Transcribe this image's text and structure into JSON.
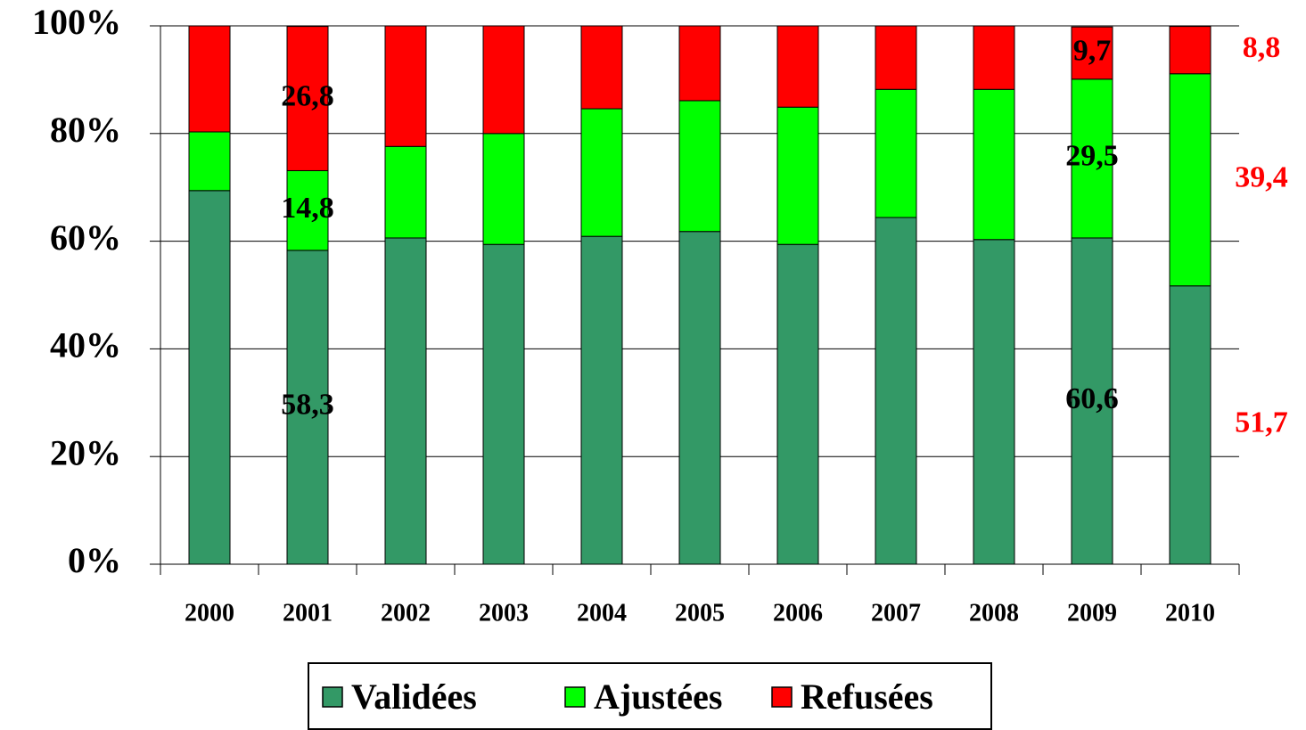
{
  "chart_data": {
    "type": "stacked_bar",
    "categories": [
      "2000",
      "2001",
      "2002",
      "2003",
      "2004",
      "2005",
      "2006",
      "2007",
      "2008",
      "2009",
      "2010"
    ],
    "series": [
      {
        "name": "Validées",
        "color": "#339966",
        "values": [
          69.4,
          58.3,
          60.6,
          59.4,
          60.9,
          61.8,
          59.4,
          64.4,
          60.3,
          60.6,
          51.7
        ],
        "value_labels": [
          null,
          "58,3",
          null,
          null,
          null,
          null,
          null,
          null,
          null,
          "60,6",
          "51,7"
        ],
        "value_label_colors": [
          null,
          "#000000",
          null,
          null,
          null,
          null,
          null,
          null,
          null,
          "#000000",
          "#ff0000"
        ]
      },
      {
        "name": "Ajustées",
        "color": "#00ff00",
        "values": [
          10.9,
          14.8,
          17.0,
          20.6,
          23.7,
          24.3,
          25.5,
          23.8,
          27.9,
          29.5,
          39.4
        ],
        "value_labels": [
          null,
          "14,8",
          null,
          null,
          null,
          null,
          null,
          null,
          null,
          "29,5",
          "39,4"
        ],
        "value_label_colors": [
          null,
          "#000000",
          null,
          null,
          null,
          null,
          null,
          null,
          null,
          "#000000",
          "#ff0000"
        ]
      },
      {
        "name": "Refusées",
        "color": "#ff0000",
        "values": [
          19.7,
          26.8,
          22.4,
          20.0,
          15.4,
          13.9,
          15.1,
          11.8,
          11.8,
          9.7,
          8.8
        ],
        "value_labels": [
          null,
          "26,8",
          null,
          null,
          null,
          null,
          null,
          null,
          null,
          "9,7",
          "8,8"
        ],
        "value_label_colors": [
          null,
          "#000000",
          null,
          null,
          null,
          null,
          null,
          null,
          null,
          "#000000",
          "#ff0000"
        ]
      }
    ],
    "ylim": [
      0,
      100
    ],
    "yticks": [
      {
        "value": 0,
        "label": "0%"
      },
      {
        "value": 20,
        "label": "20%"
      },
      {
        "value": 40,
        "label": "40%"
      },
      {
        "value": 60,
        "label": "60%"
      },
      {
        "value": 80,
        "label": "80%"
      },
      {
        "value": 100,
        "label": "100%"
      }
    ],
    "grid": true,
    "legend": "bottom"
  }
}
